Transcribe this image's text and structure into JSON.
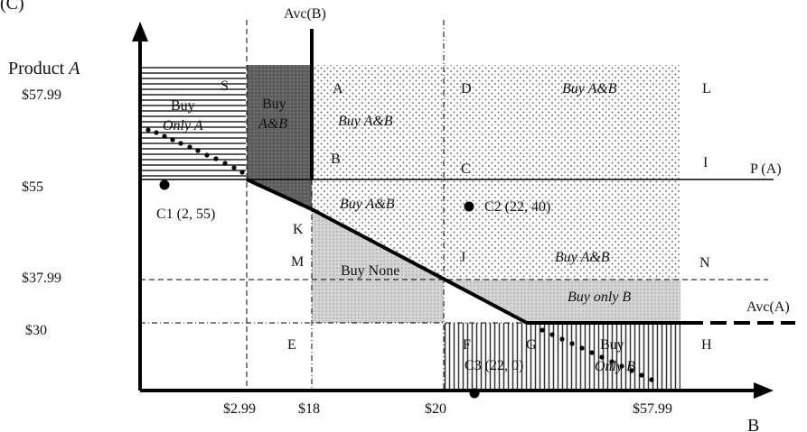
{
  "panel_label": "(C)",
  "axes": {
    "y_label_prefix": "Product ",
    "y_label_em": "A",
    "x_label": "B",
    "y_ticks": [
      "$57.99",
      "$55",
      "$37.99",
      "$30"
    ],
    "x_ticks": [
      "$2.99",
      "$18",
      "$20",
      "$57.99"
    ]
  },
  "lines": {
    "avc_b": "Avc(B)",
    "p_a": "P (A)",
    "avc_a": "Avc(A)"
  },
  "points": [
    "S",
    "A",
    "D",
    "L",
    "B",
    "C",
    "I",
    "K",
    "M",
    "J",
    "N",
    "E",
    "F",
    "G",
    "H"
  ],
  "consumers": {
    "c1": "C1 (2, 55)",
    "c2": "C2 (22, 40)",
    "c3": "C3 (22, 0)"
  },
  "regions": {
    "buy_only_a_1": "Buy",
    "buy_only_a_2": "Only A",
    "buy_ab_dark_1": "Buy",
    "buy_ab_dark_2": "A&B",
    "buy_ab_upper_left": "Buy A&B",
    "buy_ab_top_right": "Buy A&B",
    "buy_ab_middle": "Buy A&B",
    "buy_ab_right": "Buy A&B",
    "buy_none": "Buy None",
    "buy_only_b": "Buy only B",
    "buy_only_b_low_1": "Buy",
    "buy_only_b_low_2": "Only B"
  },
  "colors": {
    "dark_region": "#5a5a5a",
    "light_region": "#cfcfcf",
    "axis": "#000000"
  }
}
